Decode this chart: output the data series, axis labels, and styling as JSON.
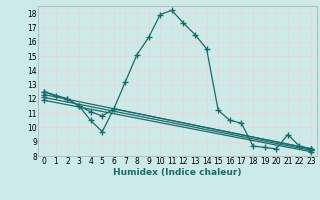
{
  "xlabel": "Humidex (Indice chaleur)",
  "bg_color": "#cceae8",
  "grid_color": "#e8d8d8",
  "line_color": "#1a6b6b",
  "xlim": [
    -0.5,
    23.5
  ],
  "ylim": [
    8,
    18.5
  ],
  "xticks": [
    0,
    1,
    2,
    3,
    4,
    5,
    6,
    7,
    8,
    9,
    10,
    11,
    12,
    13,
    14,
    15,
    16,
    17,
    18,
    19,
    20,
    21,
    22,
    23
  ],
  "yticks": [
    8,
    9,
    10,
    11,
    12,
    13,
    14,
    15,
    16,
    17,
    18
  ],
  "line1_x": [
    0,
    1,
    2,
    3,
    4,
    5,
    6,
    7,
    8,
    9,
    10,
    11,
    12,
    13,
    14,
    15,
    16,
    17,
    18,
    19,
    20,
    21,
    22,
    23
  ],
  "line1_y": [
    12.5,
    12.2,
    12.0,
    11.5,
    10.5,
    9.7,
    11.3,
    13.2,
    15.1,
    16.3,
    17.9,
    18.2,
    17.3,
    16.5,
    15.5,
    11.2,
    10.5,
    10.3,
    8.7,
    8.6,
    8.5,
    9.5,
    8.7,
    8.5
  ],
  "line2_x": [
    0,
    2,
    3,
    4,
    5,
    6,
    23
  ],
  "line2_y": [
    12.5,
    12.0,
    11.5,
    11.1,
    10.8,
    11.3,
    8.5
  ],
  "line3_x": [
    0,
    23
  ],
  "line3_y": [
    12.3,
    8.5
  ],
  "line4_x": [
    0,
    23
  ],
  "line4_y": [
    12.1,
    8.4
  ],
  "line5_x": [
    0,
    23
  ],
  "line5_y": [
    11.9,
    8.3
  ]
}
